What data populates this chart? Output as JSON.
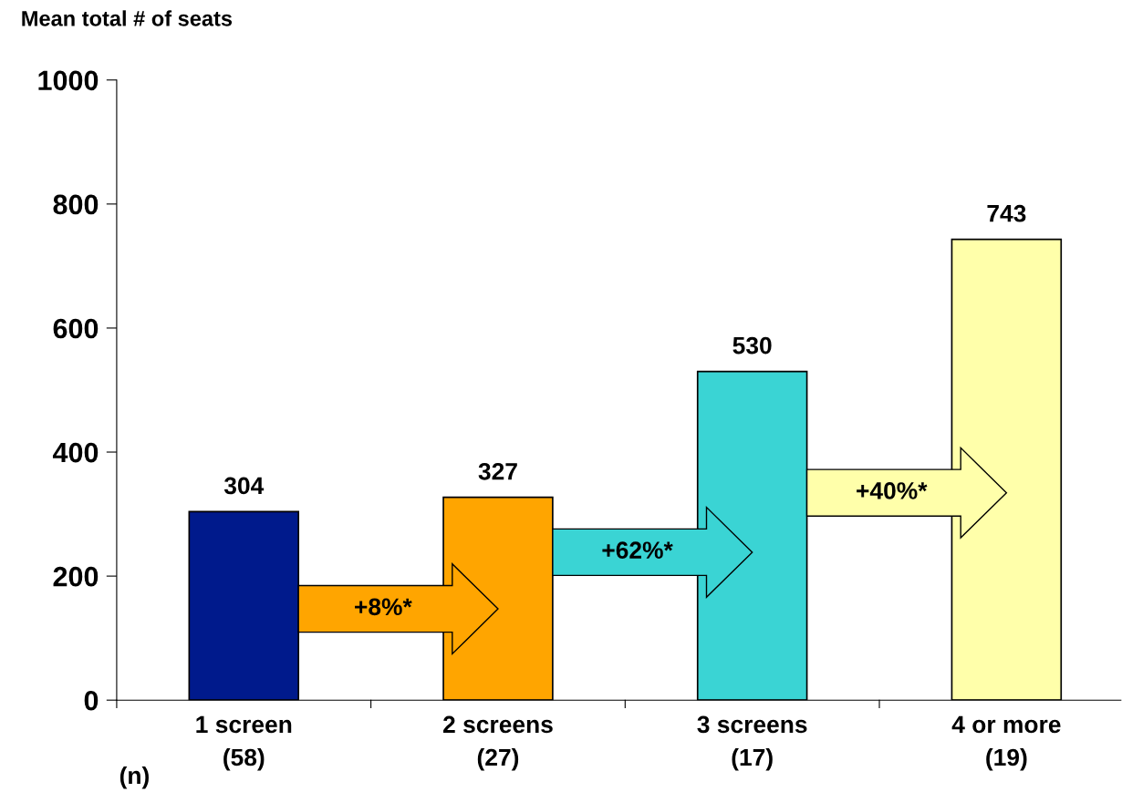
{
  "chart_data": {
    "type": "bar",
    "ylabel": "Mean total # of seats",
    "categories": [
      "1 screen\n(58)",
      "2 screens\n(27)",
      "3 screens\n(17)",
      "4 or more\n(19)"
    ],
    "values": [
      304,
      327,
      530,
      743
    ],
    "colors": [
      "#001a8c",
      "#ffa500",
      "#3ad4d4",
      "#ffffaa"
    ],
    "ylim": [
      0,
      1000
    ],
    "yticks": [
      0,
      200,
      400,
      600,
      800,
      1000
    ],
    "data_labels": true,
    "grid": false,
    "annotations": [
      "+8%*",
      "+62%*",
      "+40%*",
      "(n)"
    ]
  }
}
